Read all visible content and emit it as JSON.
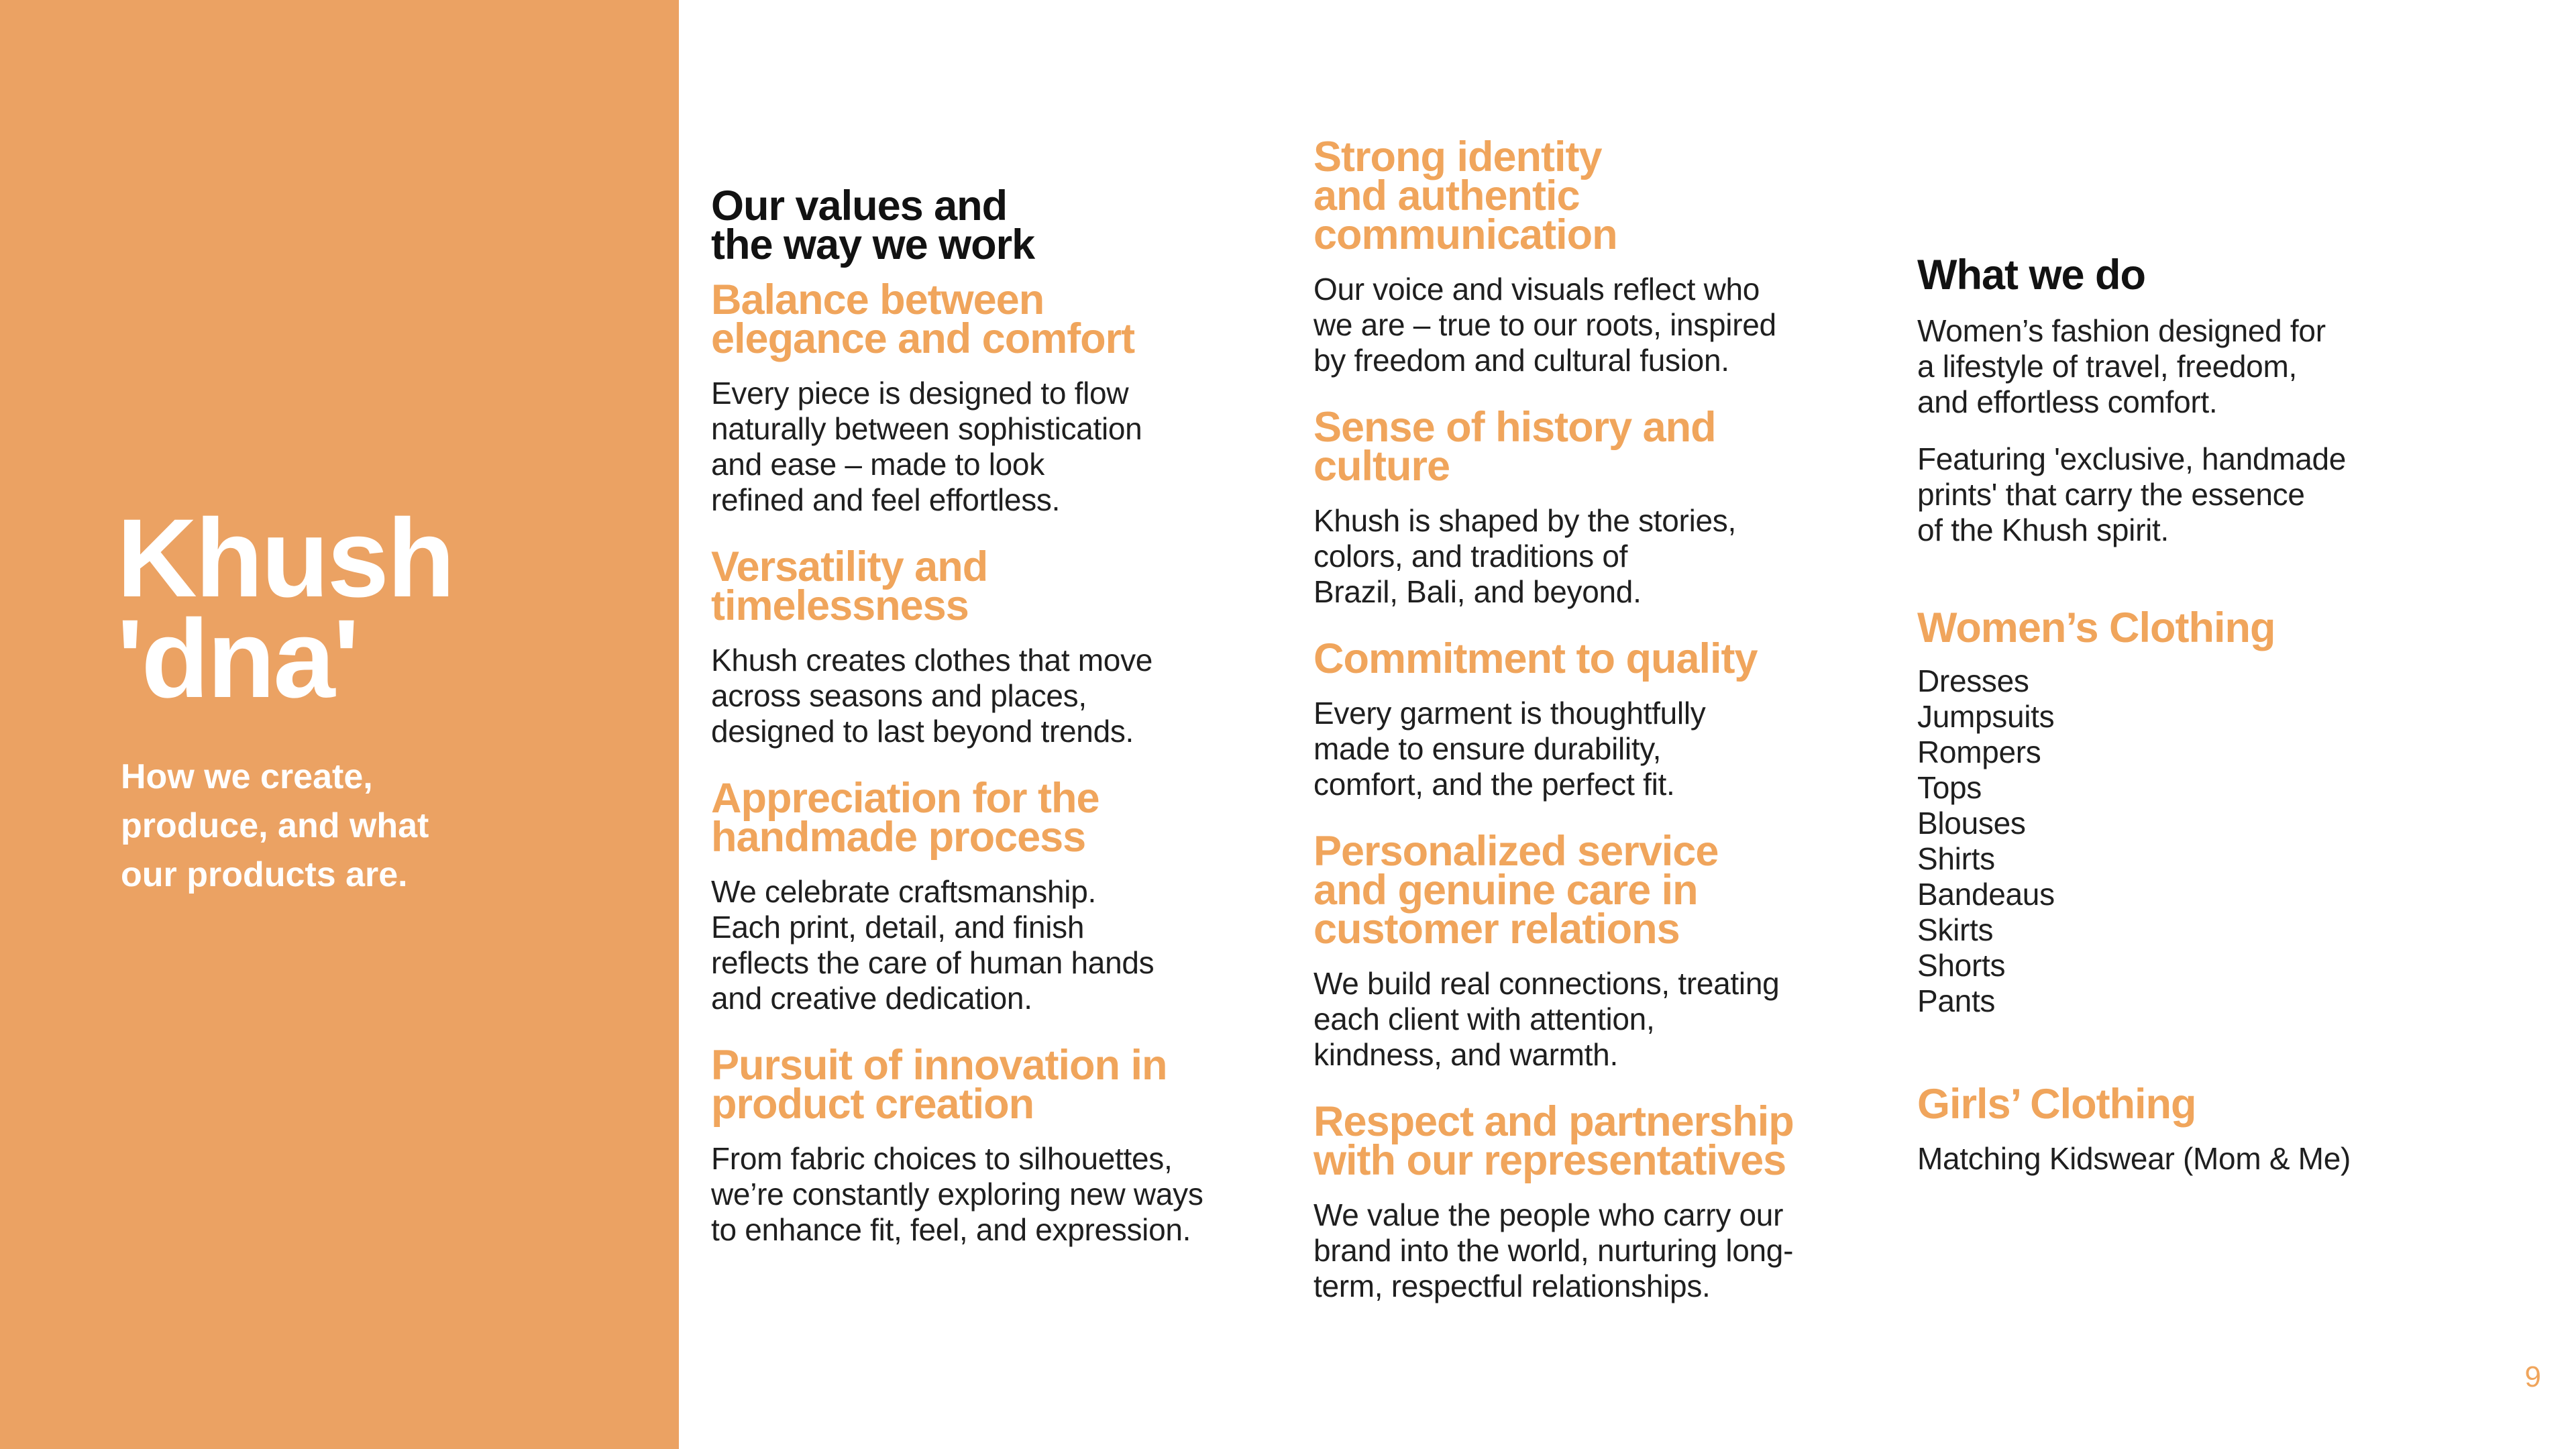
{
  "page": {
    "number": "9"
  },
  "colors": {
    "accent": "#F0A55C",
    "sidebar_bg": "#EBA263",
    "heading_text": "#121212",
    "body_text": "#1F1F1F",
    "sidebar_text": "#FFFFFF",
    "page_bg": "#FFFFFF"
  },
  "sidebar": {
    "title": "Khush\n'dna'",
    "subtitle": "How we create,\nproduce, and what\nour products are."
  },
  "values_column": {
    "heading": "Our values and\nthe way we work",
    "sections": [
      {
        "heading": "Balance between\nelegance and comfort",
        "body": "Every piece is designed to flow\nnaturally between sophistication\nand ease – made to look\nrefined and feel effortless."
      },
      {
        "heading": "Versatility and\ntimelessness",
        "body": "Khush creates clothes that move\nacross seasons and places,\ndesigned to last beyond trends."
      },
      {
        "heading": "Appreciation for the\nhandmade process",
        "body": "We celebrate craftsmanship.\nEach print, detail, and finish\nreflects the care of human hands\nand creative dedication."
      },
      {
        "heading": "Pursuit of innovation in\nproduct creation",
        "body": "From fabric choices to silhouettes,\nwe’re constantly exploring new ways\nto enhance fit, feel, and expression."
      }
    ]
  },
  "identity_column": {
    "sections": [
      {
        "heading": "Strong identity\nand authentic\ncommunication",
        "body": "Our voice and visuals reflect who\nwe are – true to our roots, inspired\nby freedom and cultural fusion."
      },
      {
        "heading": "Sense of history and\nculture",
        "body": "Khush is shaped by the stories,\ncolors, and traditions of\nBrazil, Bali, and beyond."
      },
      {
        "heading": "Commitment to quality",
        "body": "Every garment is thoughtfully\nmade to ensure durability,\ncomfort, and the perfect fit."
      },
      {
        "heading": "Personalized service\nand genuine care in\ncustomer relations",
        "body": "We build real connections, treating\neach client with attention,\nkindness, and warmth."
      },
      {
        "heading": "Respect and partnership\nwith our representatives",
        "body": "We value the people who carry our\nbrand into the world, nurturing long-\nterm, respectful relationships."
      }
    ]
  },
  "whatwedo_column": {
    "heading": "What we do",
    "paragraphs": [
      "Women’s fashion designed for\na lifestyle of travel, freedom,\nand effortless comfort.",
      "Featuring 'exclusive, handmade\nprints' that carry the essence\nof the Khush spirit."
    ],
    "womens_heading": "Women’s Clothing",
    "womens_items": [
      "Dresses",
      "Jumpsuits",
      "Rompers",
      "Tops",
      "Blouses",
      "Shirts",
      "Bandeaus",
      "Skirts",
      "Shorts",
      "Pants"
    ],
    "girls_heading": "Girls’ Clothing",
    "girls_body": "Matching Kidswear (Mom & Me)"
  }
}
